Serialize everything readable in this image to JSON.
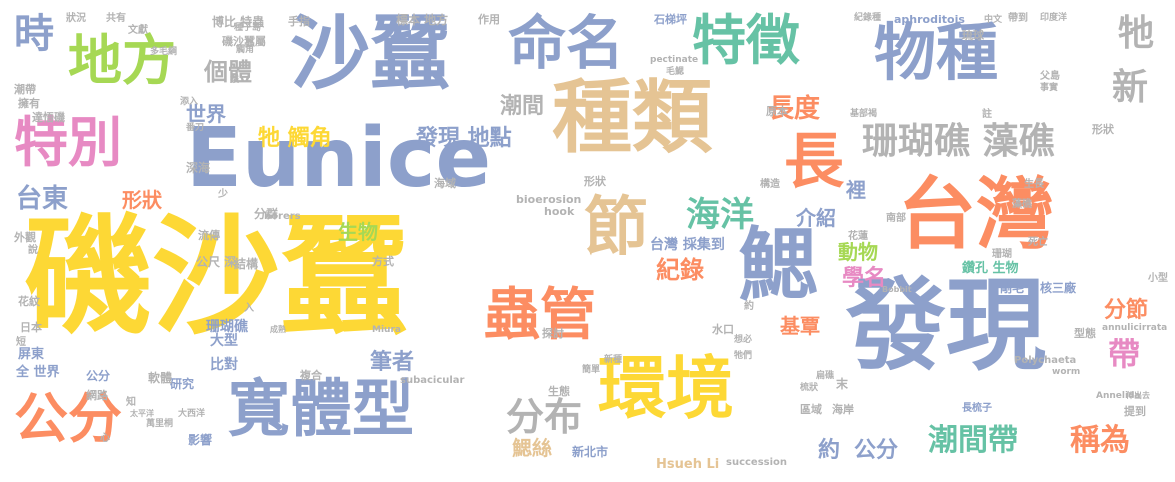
{
  "palette": {
    "yellow": "#fdd835",
    "blue": "#8da0cb",
    "green": "#66c2a5",
    "orange": "#fc8d62",
    "pink": "#e78ac3",
    "tan": "#e5c494",
    "lime": "#a6d854",
    "gray": "#b3b3b3"
  },
  "words": [
    {
      "text": "磯沙蠶",
      "size": 128,
      "color": "yellow",
      "orient": "h"
    },
    {
      "text": "發現",
      "size": 100,
      "color": "blue",
      "orient": "h"
    },
    {
      "text": "Eunice",
      "size": 82,
      "color": "blue",
      "orient": "h"
    },
    {
      "text": "沙蠶",
      "size": 80,
      "color": "blue",
      "orient": "h"
    },
    {
      "text": "台灣",
      "size": 78,
      "color": "orange",
      "orient": "h"
    },
    {
      "text": "種類",
      "size": 80,
      "color": "tan",
      "orient": "h"
    },
    {
      "text": "寬體型",
      "size": 62,
      "color": "blue",
      "orient": "h"
    },
    {
      "text": "環境",
      "size": 68,
      "color": "yellow",
      "orient": "h"
    },
    {
      "text": "鰓",
      "size": 80,
      "color": "blue",
      "orient": "h"
    },
    {
      "text": "物種",
      "size": 62,
      "color": "blue",
      "orient": "h"
    },
    {
      "text": "命名",
      "size": 58,
      "color": "blue",
      "orient": "h"
    },
    {
      "text": "特徵",
      "size": 54,
      "color": "green",
      "orient": "h"
    },
    {
      "text": "地方",
      "size": 54,
      "color": "lime",
      "orient": "h"
    },
    {
      "text": "特別",
      "size": 54,
      "color": "pink",
      "orient": "h"
    },
    {
      "text": "蟲管",
      "size": 56,
      "color": "orange",
      "orient": "h"
    },
    {
      "text": "節",
      "size": 64,
      "color": "tan",
      "orient": "h"
    },
    {
      "text": "長",
      "size": 60,
      "color": "orange",
      "orient": "h"
    },
    {
      "text": "公分",
      "size": 54,
      "color": "orange",
      "orient": "h"
    },
    {
      "text": "珊瑚礁 藻礁",
      "size": 36,
      "color": "gray",
      "orient": "h"
    },
    {
      "text": "時",
      "size": 40,
      "color": "blue",
      "orient": "h"
    },
    {
      "text": "海洋",
      "size": 34,
      "color": "green",
      "orient": "h"
    },
    {
      "text": "分布",
      "size": 38,
      "color": "gray",
      "orient": "h"
    },
    {
      "text": "潮間帶",
      "size": 30,
      "color": "green",
      "orient": "h"
    },
    {
      "text": "稱為",
      "size": 30,
      "color": "orange",
      "orient": "h"
    },
    {
      "text": "帶",
      "size": 32,
      "color": "pink",
      "orient": "h"
    },
    {
      "text": "牠",
      "size": 36,
      "color": "gray",
      "orient": "h"
    },
    {
      "text": "新",
      "size": 36,
      "color": "gray",
      "orient": "h"
    },
    {
      "text": "長度",
      "size": 26,
      "color": "orange",
      "orient": "h"
    },
    {
      "text": "台東",
      "size": 26,
      "color": "blue",
      "orient": "h"
    },
    {
      "text": "基部",
      "size": 26,
      "color": "gray",
      "orient": "h"
    },
    {
      "text": "個體",
      "size": 24,
      "color": "gray",
      "orient": "h"
    },
    {
      "text": "發現 地點",
      "size": 22,
      "color": "blue",
      "orient": "h"
    },
    {
      "text": "牠 觸角",
      "size": 22,
      "color": "yellow",
      "orient": "h"
    },
    {
      "text": "潮間",
      "size": 22,
      "color": "gray",
      "orient": "h"
    },
    {
      "text": "世界",
      "size": 20,
      "color": "blue",
      "orient": "h"
    },
    {
      "text": "形狀",
      "size": 20,
      "color": "orange",
      "orient": "h"
    },
    {
      "text": "生物",
      "size": 20,
      "color": "lime",
      "orient": "h"
    },
    {
      "text": "介紹",
      "size": 20,
      "color": "blue",
      "orient": "h"
    },
    {
      "text": "動物",
      "size": 20,
      "color": "lime",
      "orient": "h"
    },
    {
      "text": "紀錄",
      "size": 24,
      "color": "orange",
      "orient": "h"
    },
    {
      "text": "學名",
      "size": 22,
      "color": "pink",
      "orient": "h"
    },
    {
      "text": "筆者",
      "size": 22,
      "color": "blue",
      "orient": "h"
    },
    {
      "text": "基覃",
      "size": 20,
      "color": "orange",
      "orient": "h"
    },
    {
      "text": "約",
      "size": 22,
      "color": "blue",
      "orient": "h"
    },
    {
      "text": "鰓絲",
      "size": 20,
      "color": "tan",
      "orient": "h"
    },
    {
      "text": "公分",
      "size": 22,
      "color": "blue",
      "orient": "h"
    },
    {
      "text": "分節",
      "size": 22,
      "color": "orange",
      "orient": "h"
    },
    {
      "text": "裡",
      "size": 20,
      "color": "blue",
      "orient": "h"
    },
    {
      "text": "台灣 採集到",
      "size": 14,
      "color": "blue",
      "orient": "h"
    },
    {
      "text": "Hsueh Li",
      "size": 13,
      "color": "tan",
      "orient": "h"
    },
    {
      "text": "新北市",
      "size": 12,
      "color": "blue",
      "orient": "h"
    },
    {
      "text": "鑽孔 生物",
      "size": 13,
      "color": "green",
      "orient": "h"
    },
    {
      "text": "剛毛",
      "size": 12,
      "color": "blue",
      "orient": "h"
    },
    {
      "text": "核三廠",
      "size": 12,
      "color": "blue",
      "orient": "h"
    },
    {
      "text": "大型",
      "size": 14,
      "color": "blue",
      "orient": "h"
    },
    {
      "text": "珊瑚礁",
      "size": 14,
      "color": "blue",
      "orient": "h"
    },
    {
      "text": "比對",
      "size": 14,
      "color": "blue",
      "orient": "h"
    },
    {
      "text": "全 世界",
      "size": 13,
      "color": "blue",
      "orient": "h"
    },
    {
      "text": "公分",
      "size": 12,
      "color": "blue",
      "orient": "h"
    },
    {
      "text": "屏東",
      "size": 13,
      "color": "blue",
      "orient": "h"
    },
    {
      "text": "研究",
      "size": 12,
      "color": "blue",
      "orient": "h"
    },
    {
      "text": "影響",
      "size": 12,
      "color": "blue",
      "orient": "h"
    },
    {
      "text": "軟體",
      "size": 12,
      "color": "gray",
      "orient": "h"
    },
    {
      "text": "結構",
      "size": 12,
      "color": "gray",
      "orient": "h"
    },
    {
      "text": "公尺 深",
      "size": 12,
      "color": "gray",
      "orient": "h"
    },
    {
      "text": "流傳",
      "size": 11,
      "color": "gray",
      "orient": "h"
    },
    {
      "text": "形狀",
      "size": 11,
      "color": "gray",
      "orient": "h"
    },
    {
      "text": "外觀",
      "size": 11,
      "color": "gray",
      "orient": "h"
    },
    {
      "text": "花紋",
      "size": 11,
      "color": "gray",
      "orient": "h"
    },
    {
      "text": "日本",
      "size": 11,
      "color": "gray",
      "orient": "h"
    },
    {
      "text": "網路",
      "size": 11,
      "color": "gray",
      "orient": "h"
    },
    {
      "text": "深海",
      "size": 12,
      "color": "gray",
      "orient": "h"
    },
    {
      "text": "分群",
      "size": 12,
      "color": "gray",
      "orient": "h"
    },
    {
      "text": "生態",
      "size": 11,
      "color": "gray",
      "orient": "h"
    },
    {
      "text": "方式",
      "size": 11,
      "color": "gray",
      "orient": "h"
    },
    {
      "text": "複合",
      "size": 11,
      "color": "gray",
      "orient": "h"
    },
    {
      "text": "探討",
      "size": 11,
      "color": "gray",
      "orient": "h"
    },
    {
      "text": "海域",
      "size": 11,
      "color": "gray",
      "orient": "h"
    },
    {
      "text": "形狀",
      "size": 11,
      "color": "gray",
      "orient": "h"
    },
    {
      "text": "水口",
      "size": 11,
      "color": "gray",
      "orient": "h"
    },
    {
      "text": "原本",
      "size": 11,
      "color": "gray",
      "orient": "h"
    },
    {
      "text": "構造",
      "size": 10,
      "color": "gray",
      "orient": "h"
    },
    {
      "text": "型態",
      "size": 11,
      "color": "gray",
      "orient": "h"
    },
    {
      "text": "小型",
      "size": 10,
      "color": "gray",
      "orient": "h"
    },
    {
      "text": "海岸",
      "size": 11,
      "color": "gray",
      "orient": "h"
    },
    {
      "text": "區域",
      "size": 11,
      "color": "gray",
      "orient": "h"
    },
    {
      "text": "末",
      "size": 12,
      "color": "gray",
      "orient": "h"
    },
    {
      "text": "長梳子",
      "size": 10,
      "color": "blue",
      "orient": "h"
    },
    {
      "text": "提到",
      "size": 11,
      "color": "gray",
      "orient": "h"
    },
    {
      "text": "標本 地方",
      "size": 12,
      "color": "gray",
      "orient": "h"
    },
    {
      "text": "作用",
      "size": 11,
      "color": "gray",
      "orient": "h"
    },
    {
      "text": "博比 特蟲",
      "size": 12,
      "color": "gray",
      "orient": "h"
    },
    {
      "text": "手指",
      "size": 11,
      "color": "gray",
      "orient": "h"
    },
    {
      "text": "石梯坪",
      "size": 11,
      "color": "blue",
      "orient": "h"
    },
    {
      "text": "磯沙蠶屬",
      "size": 11,
      "color": "gray",
      "orient": "h"
    },
    {
      "text": "潮帶",
      "size": 11,
      "color": "gray",
      "orient": "h"
    },
    {
      "text": "擁有",
      "size": 11,
      "color": "gray",
      "orient": "h"
    },
    {
      "text": "達悟磯",
      "size": 11,
      "color": "gray",
      "orient": "h"
    },
    {
      "text": "狀況",
      "size": 10,
      "color": "gray",
      "orient": "h"
    },
    {
      "text": "共有",
      "size": 10,
      "color": "gray",
      "orient": "h"
    },
    {
      "text": "文獻",
      "size": 10,
      "color": "gray",
      "orient": "h"
    },
    {
      "text": "aphroditois",
      "size": 11,
      "color": "blue",
      "orient": "h"
    },
    {
      "text": "琉球",
      "size": 11,
      "color": "gray",
      "orient": "h"
    },
    {
      "text": "父島",
      "size": 10,
      "color": "gray",
      "orient": "h"
    },
    {
      "text": "事實",
      "size": 9,
      "color": "gray",
      "orient": "h"
    },
    {
      "text": "帶到",
      "size": 10,
      "color": "gray",
      "orient": "h"
    },
    {
      "text": "印度洋",
      "size": 9,
      "color": "gray",
      "orient": "h"
    },
    {
      "text": "中文",
      "size": 9,
      "color": "gray",
      "orient": "h"
    },
    {
      "text": "紀錄種",
      "size": 9,
      "color": "gray",
      "orient": "h"
    },
    {
      "text": "註",
      "size": 10,
      "color": "gray",
      "orient": "h"
    },
    {
      "text": "基部褐",
      "size": 9,
      "color": "gray",
      "orient": "h"
    },
    {
      "text": "花蓮",
      "size": 10,
      "color": "gray",
      "orient": "h"
    },
    {
      "text": "南部",
      "size": 10,
      "color": "gray",
      "orient": "h"
    },
    {
      "text": "生長",
      "size": 10,
      "color": "gray",
      "orient": "h"
    },
    {
      "text": "藻礁",
      "size": 10,
      "color": "gray",
      "orient": "h"
    },
    {
      "text": "死亡",
      "size": 10,
      "color": "gray",
      "orient": "h"
    },
    {
      "text": "珊瑚",
      "size": 10,
      "color": "gray",
      "orient": "h"
    },
    {
      "text": "bioerosion",
      "size": 11,
      "color": "gray",
      "orient": "h"
    },
    {
      "text": "hook",
      "size": 11,
      "color": "gray",
      "orient": "h"
    },
    {
      "text": "borers",
      "size": 10,
      "color": "gray",
      "orient": "h"
    },
    {
      "text": "subacicular",
      "size": 10,
      "color": "gray",
      "orient": "h"
    },
    {
      "text": "succession",
      "size": 10,
      "color": "gray",
      "orient": "h"
    },
    {
      "text": "Polychaeta",
      "size": 10,
      "color": "gray",
      "orient": "h"
    },
    {
      "text": "worm",
      "size": 9,
      "color": "gray",
      "orient": "h"
    },
    {
      "text": "Annelida",
      "size": 9,
      "color": "gray",
      "orient": "h"
    },
    {
      "text": "annulicirrata",
      "size": 9,
      "color": "gray",
      "orient": "h"
    },
    {
      "text": "pectinate",
      "size": 9,
      "color": "gray",
      "orient": "h"
    },
    {
      "text": "Miura",
      "size": 9,
      "color": "gray",
      "orient": "h"
    },
    {
      "text": "Bobbit",
      "size": 8,
      "color": "gray",
      "orient": "h"
    },
    {
      "text": "種子島",
      "size": 9,
      "color": "gray",
      "orient": "h"
    },
    {
      "text": "觸角",
      "size": 9,
      "color": "gray",
      "orient": "h"
    },
    {
      "text": "毛鰓",
      "size": 9,
      "color": "gray",
      "orient": "h"
    },
    {
      "text": "多毛綱",
      "size": 9,
      "color": "gray",
      "orient": "h"
    },
    {
      "text": "番刀",
      "size": 9,
      "color": "gray",
      "orient": "h"
    },
    {
      "text": "萬里桐",
      "size": 9,
      "color": "gray",
      "orient": "h"
    },
    {
      "text": "大西洋",
      "size": 9,
      "color": "gray",
      "orient": "h"
    },
    {
      "text": "太平洋",
      "size": 8,
      "color": "gray",
      "orient": "h"
    },
    {
      "text": "牠們",
      "size": 9,
      "color": "gray",
      "orient": "h"
    },
    {
      "text": "想必",
      "size": 9,
      "color": "gray",
      "orient": "h"
    },
    {
      "text": "新種",
      "size": 9,
      "color": "gray",
      "orient": "h"
    },
    {
      "text": "簡單",
      "size": 9,
      "color": "gray",
      "orient": "h"
    },
    {
      "text": "梳狀",
      "size": 9,
      "color": "gray",
      "orient": "h"
    },
    {
      "text": "扁礁",
      "size": 9,
      "color": "gray",
      "orient": "h"
    },
    {
      "text": "伸出去",
      "size": 8,
      "color": "gray",
      "orient": "h"
    },
    {
      "text": "短",
      "size": 10,
      "color": "gray",
      "orient": "h"
    },
    {
      "text": "說",
      "size": 10,
      "color": "gray",
      "orient": "h"
    },
    {
      "text": "知",
      "size": 10,
      "color": "gray",
      "orient": "h"
    },
    {
      "text": "少",
      "size": 10,
      "color": "gray",
      "orient": "h"
    },
    {
      "text": "入",
      "size": 10,
      "color": "gray",
      "orient": "h"
    },
    {
      "text": "心",
      "size": 10,
      "color": "gray",
      "orient": "h"
    },
    {
      "text": "約",
      "size": 10,
      "color": "gray",
      "orient": "h"
    },
    {
      "text": "成熟",
      "size": 8,
      "color": "gray",
      "orient": "h"
    },
    {
      "text": "鬚",
      "size": 9,
      "color": "gray",
      "orient": "h"
    },
    {
      "text": "添入",
      "size": 9,
      "color": "gray",
      "orient": "h"
    }
  ]
}
